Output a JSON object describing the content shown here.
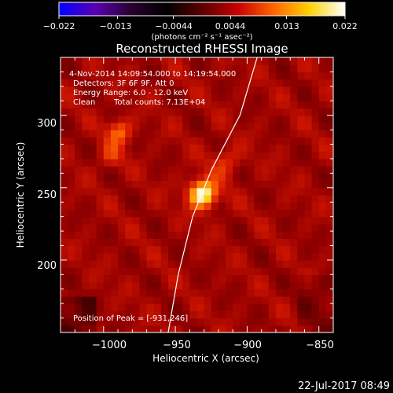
{
  "chart_data": {
    "type": "heatmap",
    "title": "Reconstructed RHESSI Image",
    "xlabel": "Heliocentric X (arcsec)",
    "ylabel": "Heliocentric Y (arcsec)",
    "xlim": [
      -1030,
      -840
    ],
    "ylim": [
      150,
      340
    ],
    "x_ticks": [
      -1000,
      -950,
      -900,
      -850
    ],
    "x_tick_labels": [
      "−1000",
      "−950",
      "−900",
      "−850"
    ],
    "y_ticks": [
      200,
      250,
      300
    ],
    "y_tick_labels": [
      "200",
      "250",
      "300"
    ],
    "colorbar": {
      "min": -0.022,
      "max": 0.022,
      "ticks": [
        -0.022,
        -0.013,
        -0.0044,
        0.0044,
        0.013,
        0.022
      ],
      "tick_labels": [
        "−0.022",
        "−0.013",
        "−0.0044",
        "0.0044",
        "0.013",
        "0.022"
      ],
      "unit_label": "(photons cm⁻² s⁻¹ asec⁻²)",
      "colormap": [
        "#0000ff",
        "#5a00b4",
        "#2a0030",
        "#000000",
        "#5a0000",
        "#c80000",
        "#ff6400",
        "#ffd200",
        "#ffffff"
      ]
    },
    "annotations": {
      "time_range": "4-Nov-2014 14:09:54.000 to 14:19:54.000",
      "detectors": "Detectors: 3F 6F 9F, Att 0",
      "energy": "Energy Range: 6.0 - 12.0 keV",
      "clean": "Clean",
      "counts": "Total counts: 7.13E+04",
      "peak": "Position of Peak = [-931,246]"
    },
    "peak": {
      "x": -931,
      "y": 246
    },
    "sources": [
      {
        "x": -931,
        "y": 246,
        "amplitude": 1.0,
        "width": 7
      },
      {
        "x": -989,
        "y": 289,
        "amplitude": 0.5,
        "width": 6
      },
      {
        "x": -995,
        "y": 272,
        "amplitude": 0.28,
        "width": 6
      },
      {
        "x": -915,
        "y": 268,
        "amplitude": 0.32,
        "width": 7
      }
    ],
    "limb_curve": [
      [
        -955,
        150
      ],
      [
        -948,
        190
      ],
      [
        -938,
        230
      ],
      [
        -925,
        262
      ],
      [
        -905,
        300
      ],
      [
        -893,
        340
      ]
    ],
    "footer_date": "22-Jul-2017 08:49"
  }
}
